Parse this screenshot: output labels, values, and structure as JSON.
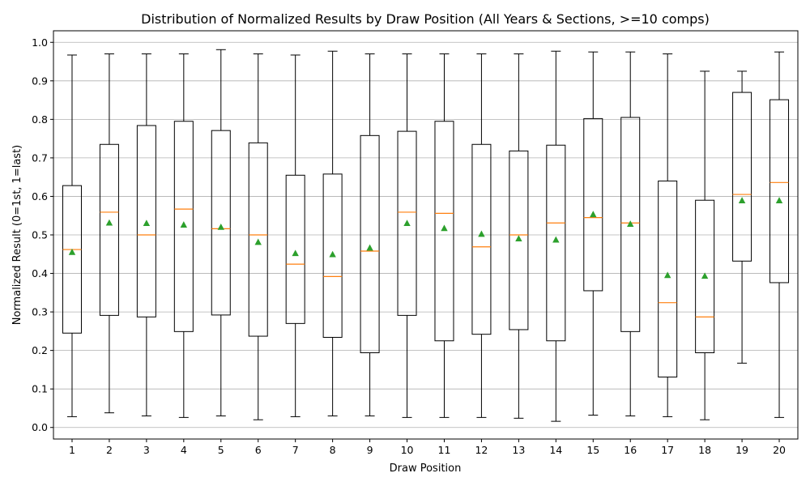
{
  "chart_data": {
    "type": "box",
    "title": "Distribution of Normalized Results by Draw Position (All Years & Sections, >=10 comps)",
    "xlabel": "Draw Position",
    "ylabel": "Normalized Result (0=1st, 1=last)",
    "ylim": [
      -0.03,
      1.03
    ],
    "yticks": [
      "0.0",
      "0.1",
      "0.2",
      "0.3",
      "0.4",
      "0.5",
      "0.6",
      "0.7",
      "0.8",
      "0.9",
      "1.0"
    ],
    "grid": "horizontal",
    "colors": {
      "box": "#000000",
      "median": "#ff7f0e",
      "mean": "#2ca02c",
      "grid": "#b0b0b0"
    },
    "categories": [
      "1",
      "2",
      "3",
      "4",
      "5",
      "6",
      "7",
      "8",
      "9",
      "10",
      "11",
      "12",
      "13",
      "14",
      "15",
      "16",
      "17",
      "18",
      "19",
      "20"
    ],
    "boxes": [
      {
        "min": 0.028,
        "q1": 0.245,
        "median": 0.462,
        "q3": 0.628,
        "max": 0.967,
        "mean": 0.455
      },
      {
        "min": 0.038,
        "q1": 0.291,
        "median": 0.559,
        "q3": 0.735,
        "max": 0.97,
        "mean": 0.531
      },
      {
        "min": 0.03,
        "q1": 0.287,
        "median": 0.5,
        "q3": 0.784,
        "max": 0.97,
        "mean": 0.53
      },
      {
        "min": 0.026,
        "q1": 0.249,
        "median": 0.567,
        "q3": 0.795,
        "max": 0.97,
        "mean": 0.526
      },
      {
        "min": 0.03,
        "q1": 0.292,
        "median": 0.516,
        "q3": 0.771,
        "max": 0.981,
        "mean": 0.52
      },
      {
        "min": 0.02,
        "q1": 0.237,
        "median": 0.5,
        "q3": 0.739,
        "max": 0.97,
        "mean": 0.481
      },
      {
        "min": 0.028,
        "q1": 0.27,
        "median": 0.424,
        "q3": 0.655,
        "max": 0.967,
        "mean": 0.452
      },
      {
        "min": 0.03,
        "q1": 0.234,
        "median": 0.392,
        "q3": 0.658,
        "max": 0.977,
        "mean": 0.449
      },
      {
        "min": 0.03,
        "q1": 0.194,
        "median": 0.458,
        "q3": 0.758,
        "max": 0.97,
        "mean": 0.466
      },
      {
        "min": 0.026,
        "q1": 0.291,
        "median": 0.559,
        "q3": 0.769,
        "max": 0.97,
        "mean": 0.53
      },
      {
        "min": 0.026,
        "q1": 0.225,
        "median": 0.556,
        "q3": 0.795,
        "max": 0.97,
        "mean": 0.517
      },
      {
        "min": 0.026,
        "q1": 0.242,
        "median": 0.469,
        "q3": 0.735,
        "max": 0.97,
        "mean": 0.502
      },
      {
        "min": 0.024,
        "q1": 0.254,
        "median": 0.5,
        "q3": 0.718,
        "max": 0.97,
        "mean": 0.49
      },
      {
        "min": 0.016,
        "q1": 0.225,
        "median": 0.531,
        "q3": 0.733,
        "max": 0.977,
        "mean": 0.487
      },
      {
        "min": 0.032,
        "q1": 0.355,
        "median": 0.545,
        "q3": 0.802,
        "max": 0.975,
        "mean": 0.553
      },
      {
        "min": 0.03,
        "q1": 0.249,
        "median": 0.531,
        "q3": 0.805,
        "max": 0.975,
        "mean": 0.528
      },
      {
        "min": 0.028,
        "q1": 0.131,
        "median": 0.324,
        "q3": 0.64,
        "max": 0.97,
        "mean": 0.395
      },
      {
        "min": 0.02,
        "q1": 0.194,
        "median": 0.287,
        "q3": 0.59,
        "max": 0.925,
        "mean": 0.393
      },
      {
        "min": 0.167,
        "q1": 0.432,
        "median": 0.605,
        "q3": 0.87,
        "max": 0.925,
        "mean": 0.589
      },
      {
        "min": 0.026,
        "q1": 0.376,
        "median": 0.636,
        "q3": 0.851,
        "max": 0.975,
        "mean": 0.589
      }
    ]
  }
}
